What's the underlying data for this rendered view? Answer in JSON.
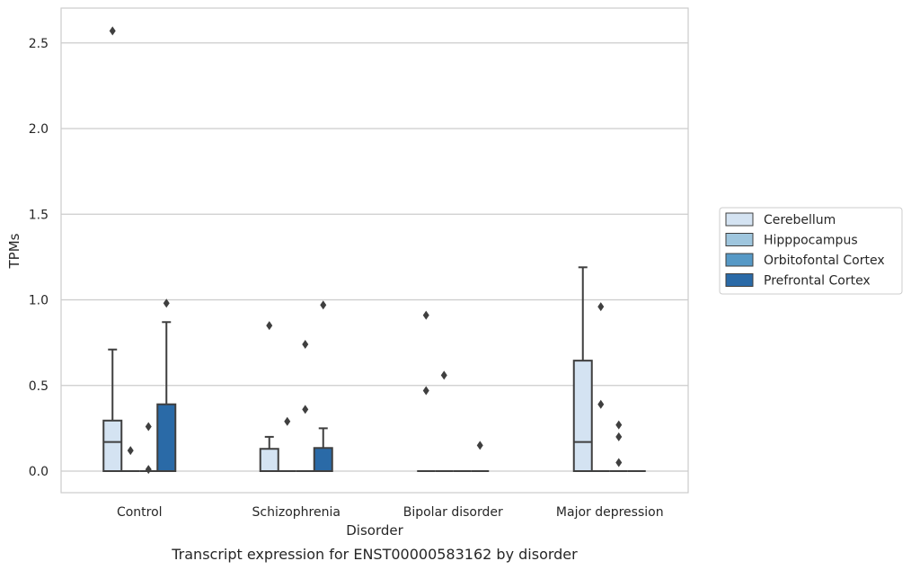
{
  "chart_data": {
    "type": "box",
    "title": "",
    "caption": "Transcript expression for ENST00000583162 by disorder",
    "xlabel": "Disorder",
    "ylabel": "TPMs",
    "ylim": [
      -0.12,
      2.7
    ],
    "yticks": [
      "0.0",
      "0.5",
      "1.0",
      "1.5",
      "2.0",
      "2.5"
    ],
    "grid": "horizontal",
    "legend_position": "right",
    "categories": [
      "Control",
      "Schizophrenia",
      "Bipolar disorder",
      "Major depression"
    ],
    "series": [
      {
        "name": "Cerebellum",
        "color": "#d4e3f2",
        "boxes": [
          {
            "q1": 0,
            "median": 0.17,
            "q3": 0.295,
            "whisker_low": 0,
            "whisker_high": 0.71,
            "outliers": [
              2.57
            ]
          },
          {
            "q1": 0,
            "median": 0,
            "q3": 0.13,
            "whisker_low": 0,
            "whisker_high": 0.2,
            "outliers": [
              0.85
            ]
          },
          {
            "q1": 0,
            "median": 0,
            "q3": 0,
            "whisker_low": 0,
            "whisker_high": 0,
            "outliers": [
              0.47,
              0.91
            ]
          },
          {
            "q1": 0,
            "median": 0.17,
            "q3": 0.645,
            "whisker_low": 0,
            "whisker_high": 1.19,
            "outliers": []
          }
        ]
      },
      {
        "name": "Hipppocampus",
        "color": "#9fc6de",
        "boxes": [
          {
            "q1": 0,
            "median": 0,
            "q3": 0,
            "whisker_low": 0,
            "whisker_high": 0,
            "outliers": [
              0.12
            ]
          },
          {
            "q1": 0,
            "median": 0,
            "q3": 0,
            "whisker_low": 0,
            "whisker_high": 0,
            "outliers": [
              0.29
            ]
          },
          {
            "q1": 0,
            "median": 0,
            "q3": 0,
            "whisker_low": 0,
            "whisker_high": 0,
            "outliers": [
              0.56
            ]
          },
          {
            "q1": 0,
            "median": 0,
            "q3": 0,
            "whisker_low": 0,
            "whisker_high": 0,
            "outliers": [
              0.39,
              0.96
            ]
          }
        ]
      },
      {
        "name": "Orbitofontal Cortex",
        "color": "#5699c6",
        "boxes": [
          {
            "q1": 0,
            "median": 0,
            "q3": 0,
            "whisker_low": 0,
            "whisker_high": 0,
            "outliers": [
              0.01,
              0.26
            ]
          },
          {
            "q1": 0,
            "median": 0,
            "q3": 0,
            "whisker_low": 0,
            "whisker_high": 0,
            "outliers": [
              0.36,
              0.74
            ]
          },
          {
            "q1": 0,
            "median": 0,
            "q3": 0,
            "whisker_low": 0,
            "whisker_high": 0,
            "outliers": []
          },
          {
            "q1": 0,
            "median": 0,
            "q3": 0,
            "whisker_low": 0,
            "whisker_high": 0,
            "outliers": [
              0.05,
              0.2,
              0.27
            ]
          }
        ]
      },
      {
        "name": "Prefrontal Cortex",
        "color": "#2a6aa7",
        "boxes": [
          {
            "q1": 0,
            "median": 0,
            "q3": 0.39,
            "whisker_low": 0,
            "whisker_high": 0.87,
            "outliers": [
              0.98
            ]
          },
          {
            "q1": 0,
            "median": 0,
            "q3": 0.135,
            "whisker_low": 0,
            "whisker_high": 0.25,
            "outliers": [
              0.97
            ]
          },
          {
            "q1": 0,
            "median": 0,
            "q3": 0,
            "whisker_low": 0,
            "whisker_high": 0,
            "outliers": [
              0.15
            ]
          },
          {
            "q1": 0,
            "median": 0,
            "q3": 0,
            "whisker_low": 0,
            "whisker_high": 0,
            "outliers": []
          }
        ]
      }
    ]
  }
}
